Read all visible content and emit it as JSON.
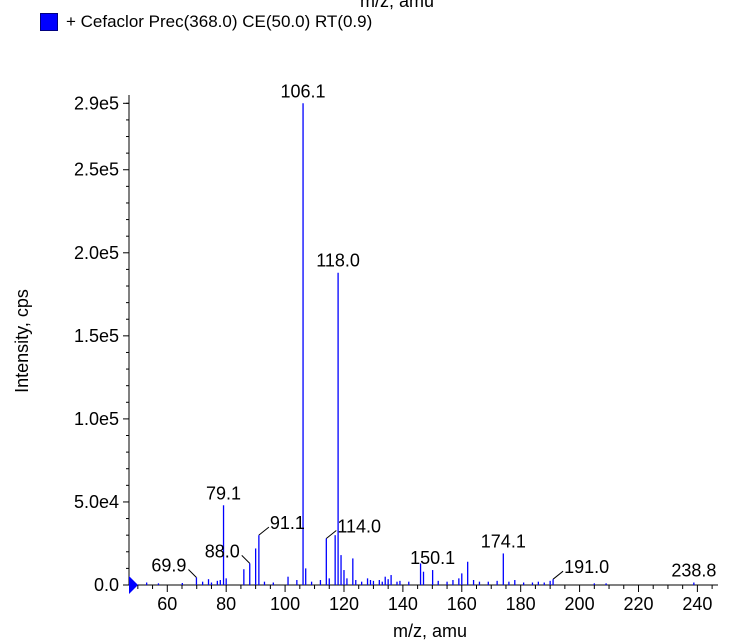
{
  "header": {
    "top_axis_label": "m/z, amu"
  },
  "legend": {
    "label": "+ Cefaclor  Prec(368.0) CE(50.0) RT(0.9)",
    "color": "#0000ff"
  },
  "chart_data": {
    "type": "bar",
    "xlabel": "m/z, amu",
    "ylabel": "Intensity, cps",
    "xlim": [
      47,
      247
    ],
    "ylim": [
      0,
      295000
    ],
    "xticks": [
      60,
      80,
      100,
      120,
      140,
      160,
      180,
      200,
      220,
      240
    ],
    "yticks": [
      {
        "value": 0,
        "label": "0.0"
      },
      {
        "value": 50000,
        "label": "5.0e4"
      },
      {
        "value": 100000,
        "label": "1.0e5"
      },
      {
        "value": 150000,
        "label": "1.5e5"
      },
      {
        "value": 200000,
        "label": "2.0e5"
      },
      {
        "value": 250000,
        "label": "2.5e5"
      },
      {
        "value": 290000,
        "label": "2.9e5"
      }
    ],
    "bar_color": "#0000ff",
    "peaks": [
      {
        "x": 53.0,
        "y": 1500
      },
      {
        "x": 57.0,
        "y": 1000
      },
      {
        "x": 65.1,
        "y": 1200
      },
      {
        "x": 69.9,
        "y": 4500
      },
      {
        "x": 72.0,
        "y": 2000
      },
      {
        "x": 74.0,
        "y": 3500
      },
      {
        "x": 75.0,
        "y": 1500
      },
      {
        "x": 77.0,
        "y": 2500
      },
      {
        "x": 78.0,
        "y": 3000
      },
      {
        "x": 79.1,
        "y": 48000
      },
      {
        "x": 80.0,
        "y": 4000
      },
      {
        "x": 86.0,
        "y": 9500
      },
      {
        "x": 88.0,
        "y": 13000
      },
      {
        "x": 90.0,
        "y": 22000
      },
      {
        "x": 91.1,
        "y": 30000
      },
      {
        "x": 93.0,
        "y": 2000
      },
      {
        "x": 96.0,
        "y": 1500
      },
      {
        "x": 101.0,
        "y": 5000
      },
      {
        "x": 104.0,
        "y": 3000
      },
      {
        "x": 106.1,
        "y": 290000
      },
      {
        "x": 107.0,
        "y": 10000
      },
      {
        "x": 109.0,
        "y": 2000
      },
      {
        "x": 112.0,
        "y": 3000
      },
      {
        "x": 114.0,
        "y": 28000
      },
      {
        "x": 115.0,
        "y": 4000
      },
      {
        "x": 117.0,
        "y": 30000
      },
      {
        "x": 118.0,
        "y": 188000
      },
      {
        "x": 119.0,
        "y": 18000
      },
      {
        "x": 120.0,
        "y": 9000
      },
      {
        "x": 121.0,
        "y": 4000
      },
      {
        "x": 123.0,
        "y": 16000
      },
      {
        "x": 124.0,
        "y": 3000
      },
      {
        "x": 126.0,
        "y": 2000
      },
      {
        "x": 128.0,
        "y": 4000
      },
      {
        "x": 129.0,
        "y": 3000
      },
      {
        "x": 130.0,
        "y": 2500
      },
      {
        "x": 132.0,
        "y": 3000
      },
      {
        "x": 133.0,
        "y": 2000
      },
      {
        "x": 134.0,
        "y": 5000
      },
      {
        "x": 135.0,
        "y": 3500
      },
      {
        "x": 136.0,
        "y": 6000
      },
      {
        "x": 138.0,
        "y": 2000
      },
      {
        "x": 139.0,
        "y": 2500
      },
      {
        "x": 142.0,
        "y": 2000
      },
      {
        "x": 146.0,
        "y": 13000
      },
      {
        "x": 147.0,
        "y": 8000
      },
      {
        "x": 150.1,
        "y": 9000
      },
      {
        "x": 152.0,
        "y": 2500
      },
      {
        "x": 155.0,
        "y": 2000
      },
      {
        "x": 157.0,
        "y": 3000
      },
      {
        "x": 159.0,
        "y": 4000
      },
      {
        "x": 160.0,
        "y": 7000
      },
      {
        "x": 162.0,
        "y": 14000
      },
      {
        "x": 164.0,
        "y": 3000
      },
      {
        "x": 166.0,
        "y": 2000
      },
      {
        "x": 169.0,
        "y": 2000
      },
      {
        "x": 172.0,
        "y": 2500
      },
      {
        "x": 174.1,
        "y": 19000
      },
      {
        "x": 176.0,
        "y": 2000
      },
      {
        "x": 178.0,
        "y": 3000
      },
      {
        "x": 181.0,
        "y": 1500
      },
      {
        "x": 184.0,
        "y": 1500
      },
      {
        "x": 186.0,
        "y": 2000
      },
      {
        "x": 188.0,
        "y": 1500
      },
      {
        "x": 190.0,
        "y": 2500
      },
      {
        "x": 191.0,
        "y": 3500
      },
      {
        "x": 205.0,
        "y": 1000
      },
      {
        "x": 209.0,
        "y": 1000
      },
      {
        "x": 238.8,
        "y": 1500
      }
    ],
    "peak_labels": [
      {
        "text": "106.1",
        "x": 106.1,
        "y": 290000
      },
      {
        "text": "118.0",
        "x": 118.0,
        "y": 188000
      },
      {
        "text": "79.1",
        "x": 79.1,
        "y": 48000
      },
      {
        "text": "91.1",
        "x": 91.1,
        "y": 30000
      },
      {
        "text": "114.0",
        "x": 114.0,
        "y": 28000
      },
      {
        "text": "88.0",
        "x": 88.0,
        "y": 13000
      },
      {
        "text": "174.1",
        "x": 174.1,
        "y": 19000
      },
      {
        "text": "150.1",
        "x": 150.1,
        "y": 9000
      },
      {
        "text": "69.9",
        "x": 69.9,
        "y": 4500
      },
      {
        "text": "191.0",
        "x": 191.0,
        "y": 3500
      },
      {
        "text": "238.8",
        "x": 238.8,
        "y": 1500
      }
    ]
  }
}
